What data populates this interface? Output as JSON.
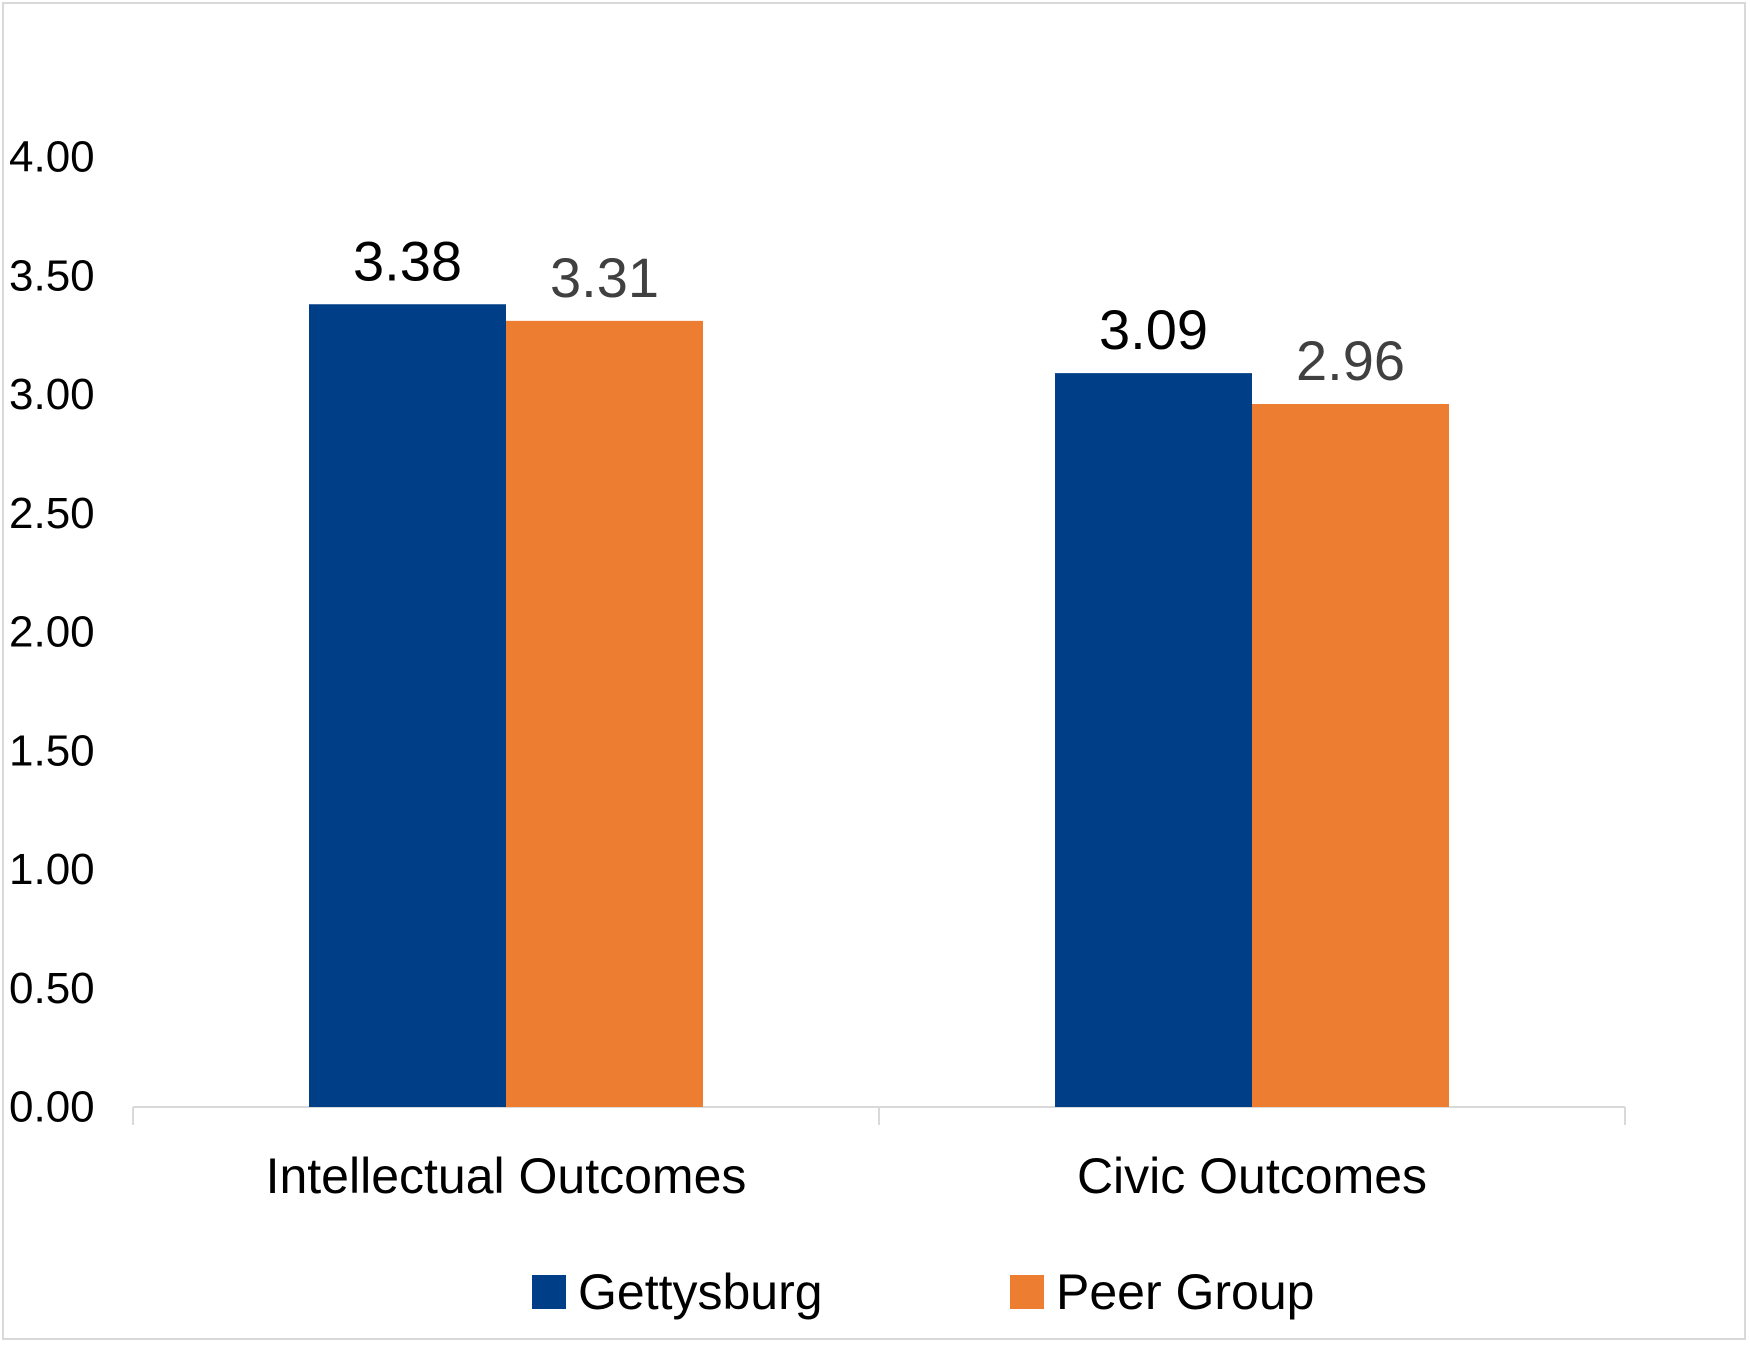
{
  "chart_data": {
    "type": "bar",
    "title": "",
    "xlabel": "",
    "ylabel": "",
    "categories": [
      "Intellectual Outcomes",
      "Civic Outcomes"
    ],
    "series": [
      {
        "name": "Gettysburg",
        "values": [
          3.38,
          3.09
        ],
        "labels": [
          "3.38",
          "3.09"
        ],
        "color": "#003f87",
        "label_color": "#000000"
      },
      {
        "name": "Peer Group",
        "values": [
          3.31,
          2.96
        ],
        "labels": [
          "3.31",
          "2.96"
        ],
        "color": "#ed7d31",
        "label_color": "#404040"
      }
    ],
    "ylim": [
      0,
      4
    ],
    "yticks": [
      "0.00",
      "0.50",
      "1.00",
      "1.50",
      "2.00",
      "2.50",
      "3.00",
      "3.50",
      "4.00"
    ],
    "grid": false,
    "legend_position": "bottom"
  }
}
